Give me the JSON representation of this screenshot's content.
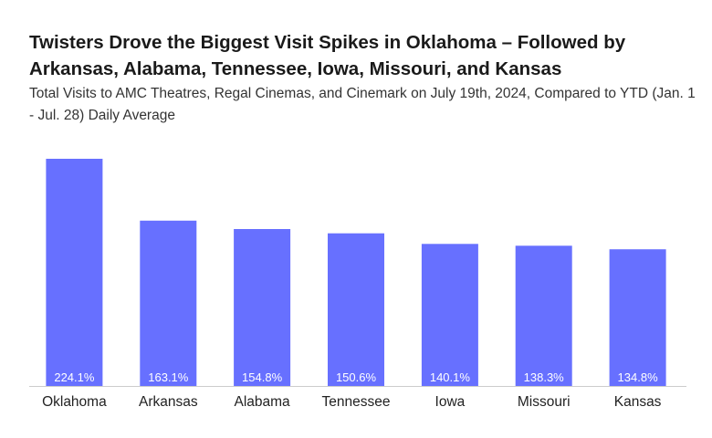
{
  "title": "Twisters Drove the Biggest Visit Spikes in Oklahoma –  Followed by Arkansas, Alabama, Tennessee, Iowa, Missouri, and Kansas",
  "subtitle": "Total Visits to AMC Theatres, Regal Cinemas, and Cinemark on July 19th, 2024,  Compared to YTD (Jan. 1 - Jul. 28) Daily Average",
  "colors": {
    "bar": "#6770ff",
    "axis": "#cccccc"
  },
  "chart_data": {
    "type": "bar",
    "title": "Twisters Drove the Biggest Visit Spikes in Oklahoma –  Followed by Arkansas, Alabama, Tennessee, Iowa, Missouri, and Kansas",
    "subtitle": "Total Visits to AMC Theatres, Regal Cinemas, and Cinemark on July 19th, 2024,  Compared to YTD (Jan. 1 - Jul. 28) Daily Average",
    "categories": [
      "Oklahoma",
      "Arkansas",
      "Alabama",
      "Tennessee",
      "Iowa",
      "Missouri",
      "Kansas"
    ],
    "values": [
      224.1,
      163.1,
      154.8,
      150.6,
      140.1,
      138.3,
      134.8
    ],
    "value_labels": [
      "224.1%",
      "163.1%",
      "154.8%",
      "150.6%",
      "140.1%",
      "138.3%",
      "134.8%"
    ],
    "unit": "%",
    "xlabel": "",
    "ylabel": "",
    "ylim": [
      0,
      224.1
    ],
    "grid": false,
    "legend": "none"
  }
}
